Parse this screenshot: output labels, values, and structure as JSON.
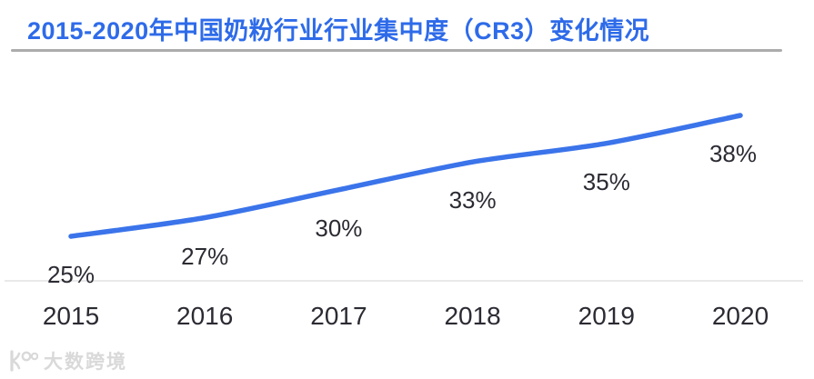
{
  "header": {
    "title": "2015-2020年中国奶粉行业行业集中度（CR3）变化情况"
  },
  "chart_data": {
    "type": "line",
    "title": "2015-2020年中国奶粉行业行业集中度（CR3）变化情况",
    "categories": [
      "2015",
      "2016",
      "2017",
      "2018",
      "2019",
      "2020"
    ],
    "values": [
      25,
      27,
      30,
      33,
      35,
      38
    ],
    "labels": [
      "25%",
      "27%",
      "30%",
      "33%",
      "35%",
      "38%"
    ],
    "unit": "%",
    "xlabel": "",
    "ylabel": "",
    "ylim": [
      23,
      40
    ],
    "grid": false,
    "legend": "none",
    "line_color": "#3b74ea",
    "label_color": "#2b2b33"
  },
  "colors": {
    "title_blue": "#2e6be9",
    "line_blue": "#3b74ea",
    "text_dark": "#2b2b33",
    "divider_gray": "#acacac",
    "axis_gray": "#e9e9e9",
    "watermark_gray": "#d9d9d9"
  },
  "watermark": {
    "text": "大数跨境",
    "logo": "dashu-kuajing-logo"
  }
}
